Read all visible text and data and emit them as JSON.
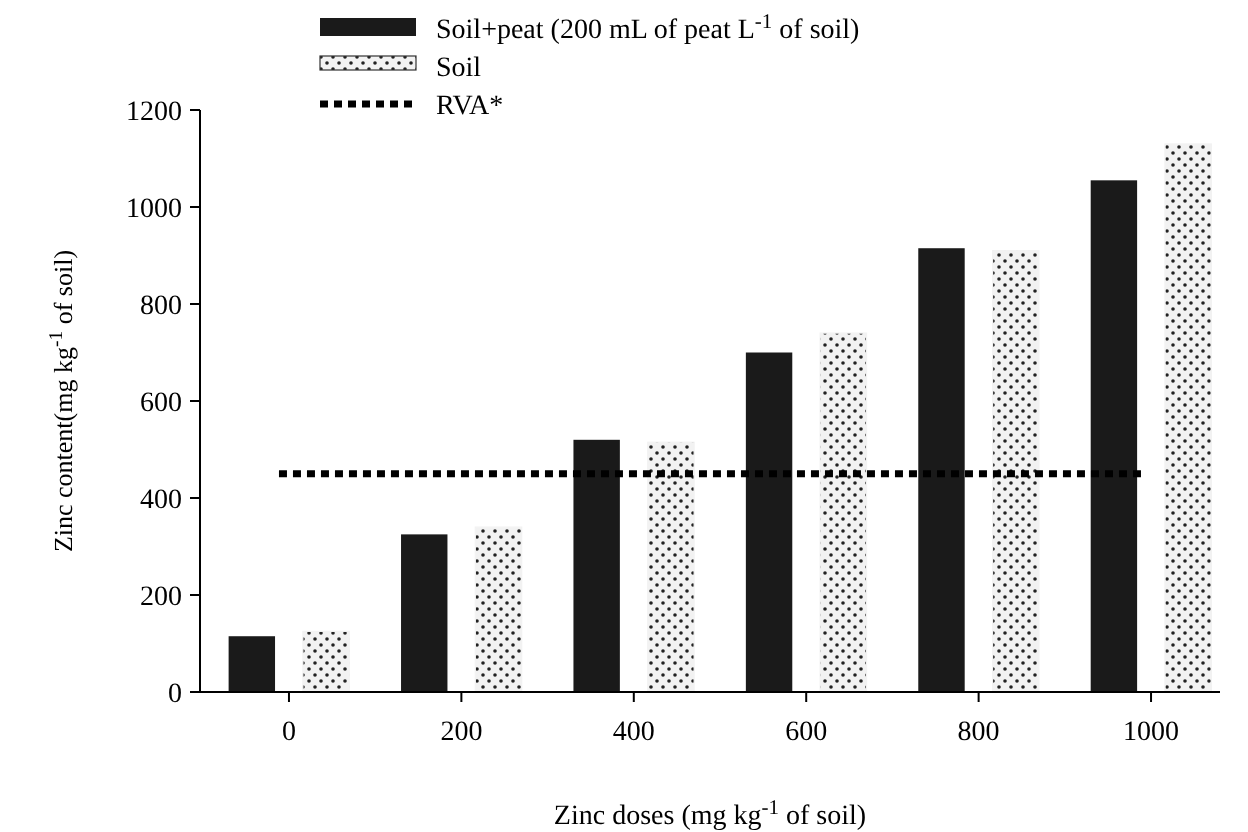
{
  "chart_data": {
    "type": "bar",
    "xlabel": "Zinc doses (mg kg$^{-1}$ of soil)",
    "ylabel": "Zinc content(mg kg$^{-1}$ of soil)",
    "categories": [
      "0",
      "200",
      "400",
      "600",
      "800",
      "1000"
    ],
    "series": [
      {
        "name": "Soil+peat (200 mL of peat L$^{-1}$ of soil)",
        "color": "#1a1a1a",
        "values": [
          115,
          325,
          520,
          700,
          915,
          1055
        ]
      },
      {
        "name": "Soil",
        "color": "#f2f2f2",
        "values": [
          125,
          340,
          515,
          740,
          910,
          1130
        ]
      }
    ],
    "ref_lines": [
      {
        "axis": "y",
        "value": 450,
        "label": "RVA*",
        "color": "#000000",
        "line_style": "dotted"
      }
    ],
    "ylim": [
      0,
      1200
    ],
    "yticks": [
      0,
      200,
      400,
      600,
      800,
      1000,
      1200
    ],
    "grid": false,
    "legend": "top"
  }
}
